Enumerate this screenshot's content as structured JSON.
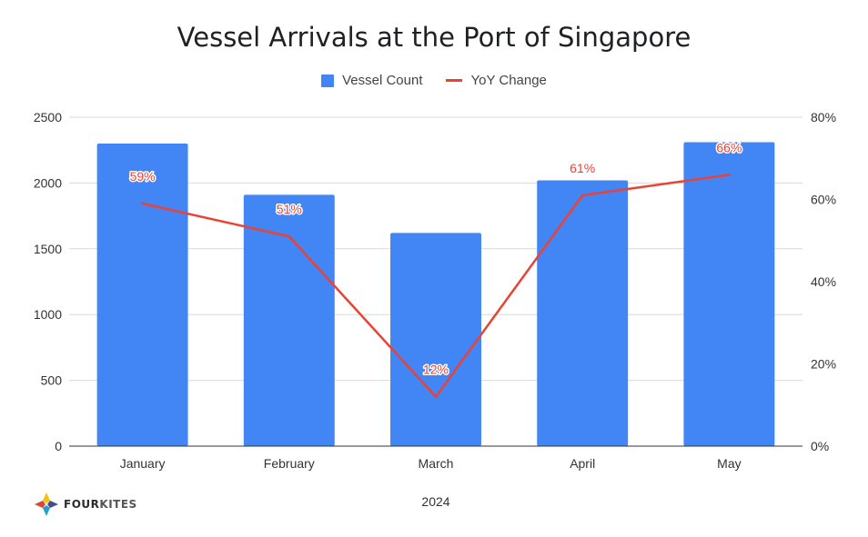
{
  "chart_data": {
    "type": "bar+line",
    "title": "Vessel Arrivals at the Port of Singapore",
    "xlabel": "2024",
    "categories": [
      "January",
      "February",
      "March",
      "April",
      "May"
    ],
    "series": [
      {
        "name": "Vessel Count",
        "type": "bar",
        "axis": "left",
        "color": "#4285f4",
        "values": [
          2300,
          1910,
          1620,
          2020,
          2310
        ]
      },
      {
        "name": "YoY Change",
        "type": "line",
        "axis": "right",
        "color": "#ea4335",
        "values": [
          59,
          51,
          12,
          61,
          66
        ],
        "labels": [
          "59%",
          "51%",
          "12%",
          "61%",
          "66%"
        ]
      }
    ],
    "y_left": {
      "ticks": [
        "0",
        "500",
        "1000",
        "1500",
        "2000",
        "2500"
      ],
      "min": 0,
      "max": 2500
    },
    "y_right": {
      "ticks": [
        "0%",
        "20%",
        "40%",
        "60%",
        "80%"
      ],
      "min": 0,
      "max": 80
    },
    "grid": true,
    "legend": "top-center"
  },
  "logo": {
    "text_part1": "FOUR",
    "text_part2": "KITES"
  }
}
